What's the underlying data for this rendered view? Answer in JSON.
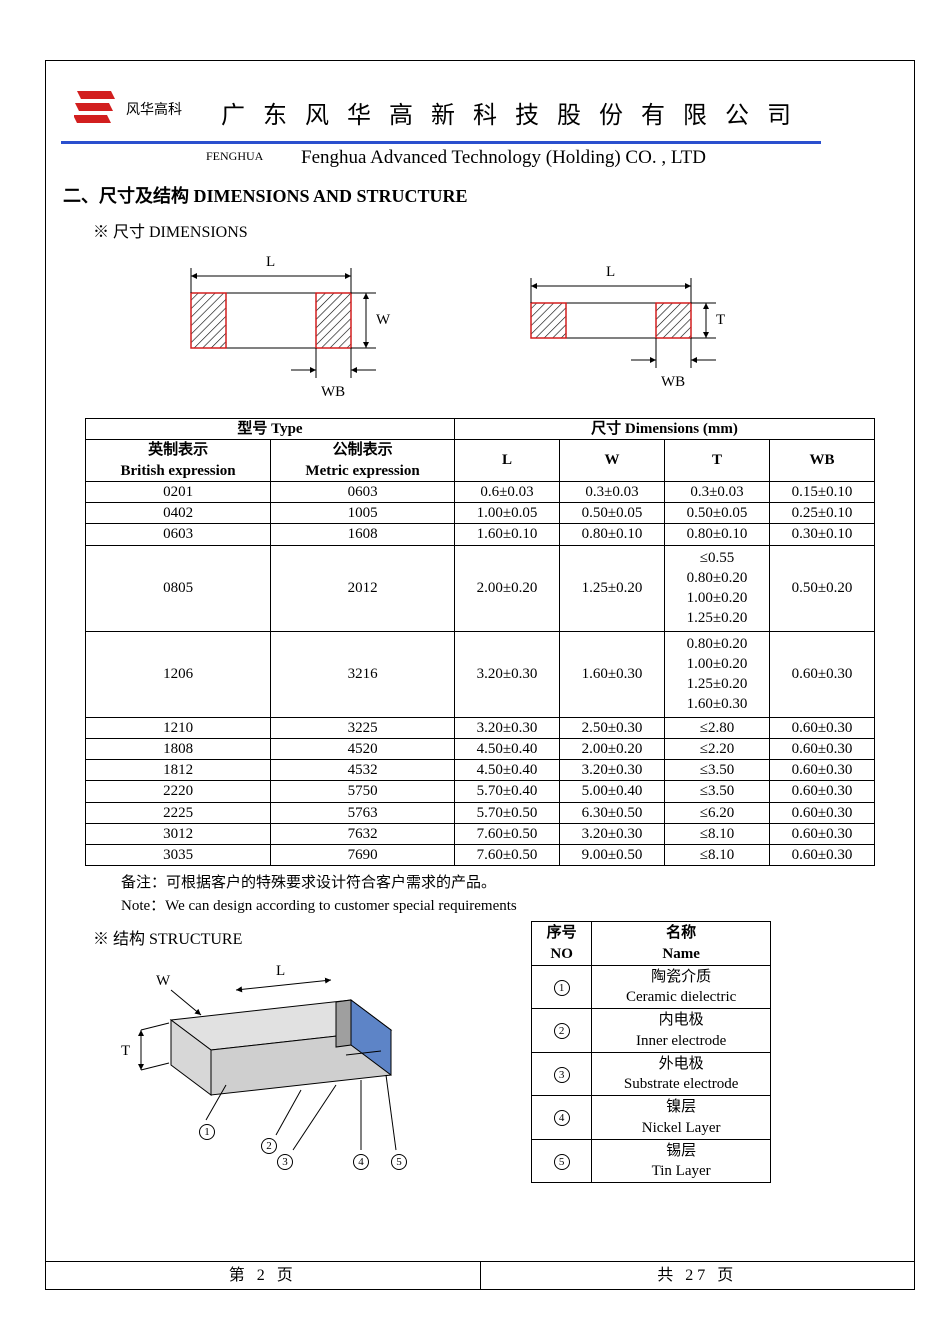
{
  "header": {
    "logo_cn": "风华高科",
    "fenghua_en": "FENGHUA",
    "company_cn": "广 东 风 华 高 新 科 技 股 份 有 限 公 司",
    "company_en": "Fenghua Advanced Technology (Holding) CO. , LTD",
    "logo_color": "#d21f1f",
    "line_color": "#2a4fce"
  },
  "section": {
    "title": "二、尺寸及结构   DIMENSIONS AND STRUCTURE",
    "dims_heading": "※ 尺寸 DIMENSIONS",
    "structure_heading": "※ 结构 STRUCTURE"
  },
  "diagram_labels": {
    "L": "L",
    "W": "W",
    "T": "T",
    "WB": "WB"
  },
  "diagram_style": {
    "stroke": "#000000",
    "hatch_stroke": "#000000",
    "hatch_border": "#d21f1f",
    "fill_body": "#d7d7d7",
    "fill_cap": "#5d84c7",
    "label_fontsize": 15
  },
  "dims_table": {
    "header_group_type": "型号 Type",
    "header_group_dims": "尺寸     Dimensions     (mm)",
    "cols": {
      "british_cn": "英制表示",
      "british_en": "British expression",
      "metric_cn": "公制表示",
      "metric_en": "Metric expression",
      "L": "L",
      "W": "W",
      "T": "T",
      "WB": "WB"
    },
    "rows": [
      {
        "british": "0201",
        "metric": "0603",
        "L": "0.6±0.03",
        "W": "0.3±0.03",
        "T": "0.3±0.03",
        "WB": "0.15±0.10"
      },
      {
        "british": "0402",
        "metric": "1005",
        "L": "1.00±0.05",
        "W": "0.50±0.05",
        "T": "0.50±0.05",
        "WB": "0.25±0.10"
      },
      {
        "british": "0603",
        "metric": "1608",
        "L": "1.60±0.10",
        "W": "0.80±0.10",
        "T": "0.80±0.10",
        "WB": "0.30±0.10"
      },
      {
        "british": "0805",
        "metric": "2012",
        "L": "2.00±0.20",
        "W": "1.25±0.20",
        "T": "≤0.55\n0.80±0.20\n1.00±0.20\n1.25±0.20",
        "WB": "0.50±0.20"
      },
      {
        "british": "1206",
        "metric": "3216",
        "L": "3.20±0.30",
        "W": "1.60±0.30",
        "T": "0.80±0.20\n1.00±0.20\n1.25±0.20\n1.60±0.30",
        "WB": "0.60±0.30"
      },
      {
        "british": "1210",
        "metric": "3225",
        "L": "3.20±0.30",
        "W": "2.50±0.30",
        "T": "≤2.80",
        "WB": "0.60±0.30"
      },
      {
        "british": "1808",
        "metric": "4520",
        "L": "4.50±0.40",
        "W": "2.00±0.20",
        "T": "≤2.20",
        "WB": "0.60±0.30"
      },
      {
        "british": "1812",
        "metric": "4532",
        "L": "4.50±0.40",
        "W": "3.20±0.30",
        "T": "≤3.50",
        "WB": "0.60±0.30"
      },
      {
        "british": "2220",
        "metric": "5750",
        "L": "5.70±0.40",
        "W": "5.00±0.40",
        "T": "≤3.50",
        "WB": "0.60±0.30"
      },
      {
        "british": "2225",
        "metric": "5763",
        "L": "5.70±0.50",
        "W": "6.30±0.50",
        "T": "≤6.20",
        "WB": "0.60±0.30"
      },
      {
        "british": "3012",
        "metric": "7632",
        "L": "7.60±0.50",
        "W": "3.20±0.30",
        "T": "≤8.10",
        "WB": "0.60±0.30"
      },
      {
        "british": "3035",
        "metric": "7690",
        "L": "7.60±0.50",
        "W": "9.00±0.50",
        "T": "≤8.10",
        "WB": "0.60±0.30"
      }
    ]
  },
  "notes": {
    "cn": "备注：可根据客户的特殊要求设计符合客户需求的产品。",
    "en": "Note：We can design according to customer special requirements"
  },
  "structure_table": {
    "head_no_cn": "序号",
    "head_no_en": "NO",
    "head_name_cn": "名称",
    "head_name_en": "Name",
    "rows": [
      {
        "no": "1",
        "cn": "陶瓷介质",
        "en": "Ceramic   dielectric"
      },
      {
        "no": "2",
        "cn": "内电极",
        "en": "Inner   electrode"
      },
      {
        "no": "3",
        "cn": "外电极",
        "en": "Substrate   electrode"
      },
      {
        "no": "4",
        "cn": "镍层",
        "en": "Nickel Layer"
      },
      {
        "no": "5",
        "cn": "锡层",
        "en": "Tin Layer"
      }
    ]
  },
  "footer": {
    "left": "第   2   页",
    "right": "共  27  页"
  }
}
